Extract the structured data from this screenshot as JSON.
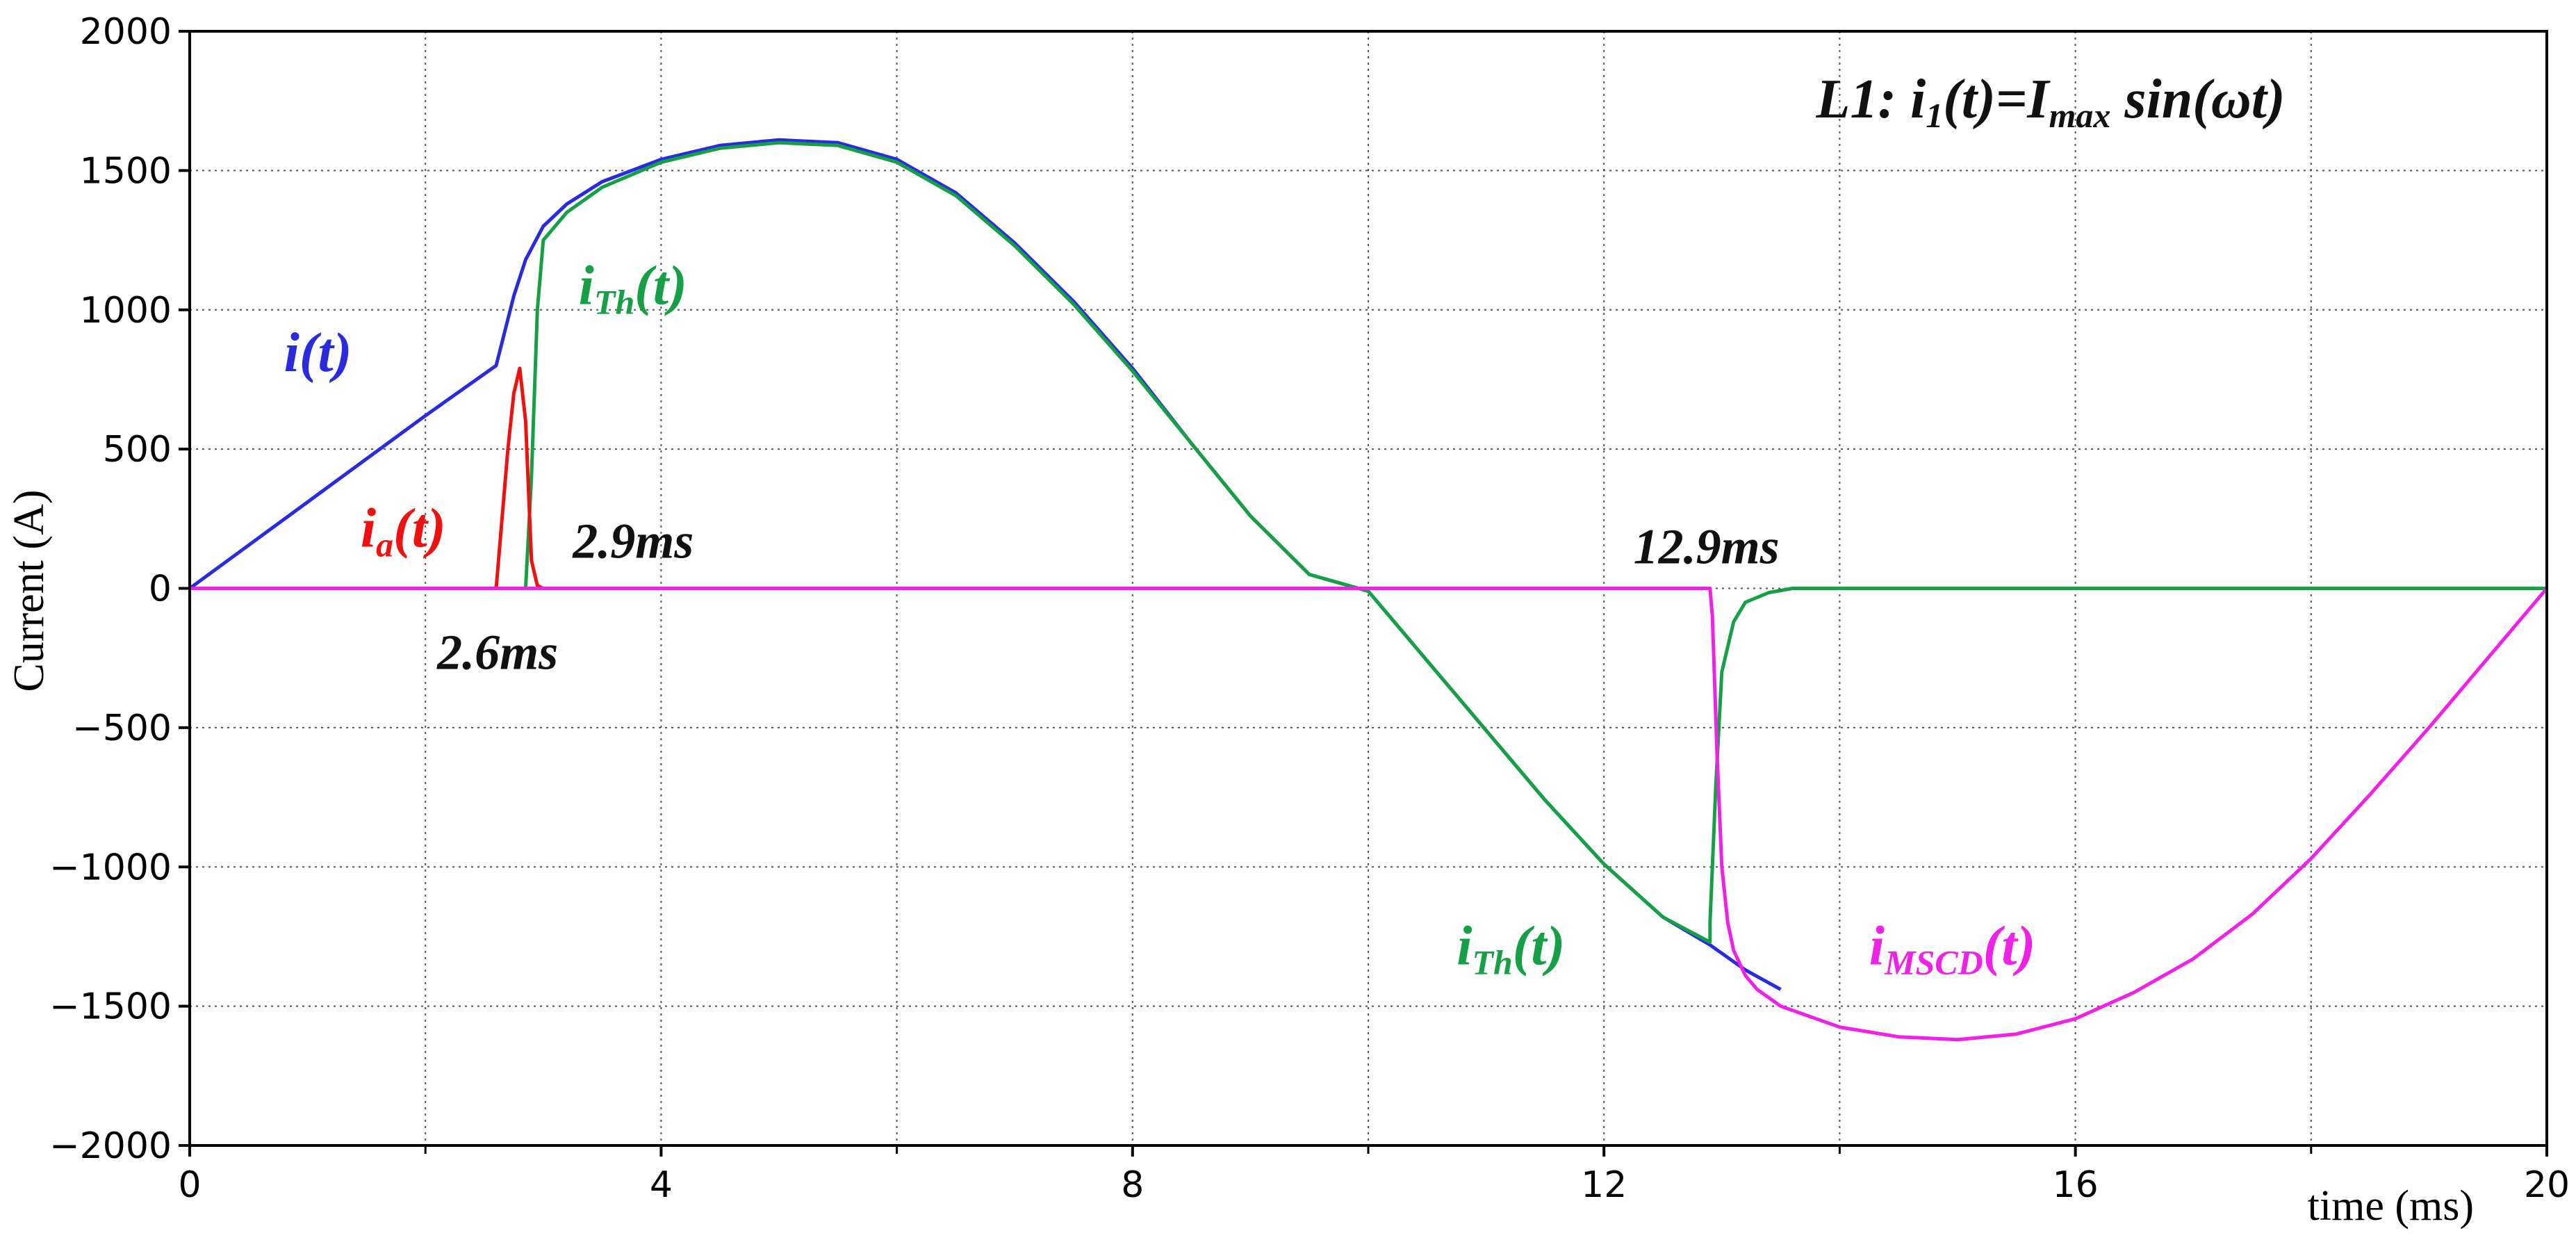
{
  "chart_data": {
    "type": "line",
    "title": "",
    "xlabel": "time (ms)",
    "ylabel": "Current (A)",
    "xlim": [
      0,
      20
    ],
    "ylim": [
      -2000,
      2000
    ],
    "x_ticks": [
      0,
      4,
      8,
      12,
      16,
      20
    ],
    "x_minor_grid": [
      2,
      6,
      10,
      14,
      18
    ],
    "y_ticks": [
      -2000,
      -1500,
      -1000,
      -500,
      0,
      500,
      1000,
      1500,
      2000
    ],
    "grid": true,
    "colors": {
      "i": "#2a2ae0",
      "ia": "#f01010",
      "iTh": "#16a046",
      "iMSCD": "#f020e8",
      "text": "#111111"
    },
    "series": [
      {
        "key": "i",
        "x": [
          0,
          1,
          2,
          2.6,
          2.75,
          2.85,
          3.0,
          3.2,
          3.5,
          4,
          4.5,
          5,
          5.5,
          6,
          6.5,
          7,
          7.5,
          8,
          8.5,
          9,
          9.5,
          10,
          10.5,
          11,
          11.5,
          12,
          12.5,
          12.9,
          13.2,
          13.5
        ],
        "y": [
          0,
          310,
          620,
          800,
          1050,
          1180,
          1300,
          1380,
          1460,
          1540,
          1590,
          1610,
          1600,
          1540,
          1420,
          1240,
          1030,
          790,
          520,
          260,
          50,
          -10,
          -260,
          -510,
          -760,
          -990,
          -1180,
          -1280,
          -1370,
          -1440
        ]
      },
      {
        "key": "ia",
        "x": [
          0,
          2.5,
          2.6,
          2.7,
          2.75,
          2.8,
          2.85,
          2.9,
          2.95,
          3.0,
          6.3
        ],
        "y": [
          0,
          0,
          0,
          500,
          700,
          790,
          600,
          100,
          10,
          0,
          0
        ]
      },
      {
        "key": "iTh",
        "x": [
          0,
          2.85,
          2.9,
          2.95,
          3.0,
          3.2,
          3.5,
          4,
          4.5,
          5,
          5.5,
          6,
          6.5,
          7,
          7.5,
          8,
          8.5,
          9,
          9.5,
          10,
          10.5,
          11,
          11.5,
          12,
          12.5,
          12.9,
          12.9,
          12.95,
          13.0,
          13.1,
          13.2,
          13.4,
          13.6,
          20
        ],
        "y": [
          0,
          0,
          400,
          1000,
          1250,
          1350,
          1440,
          1530,
          1580,
          1600,
          1590,
          1530,
          1410,
          1230,
          1020,
          780,
          520,
          260,
          50,
          -10,
          -260,
          -510,
          -760,
          -990,
          -1180,
          -1270,
          -1200,
          -700,
          -300,
          -120,
          -50,
          -15,
          0,
          0
        ]
      },
      {
        "key": "iMSCD",
        "x": [
          0,
          12.9,
          12.92,
          12.96,
          13.0,
          13.05,
          13.1,
          13.2,
          13.3,
          13.5,
          14,
          14.5,
          15,
          15.5,
          16,
          16.5,
          17,
          17.5,
          18,
          18.5,
          19,
          19.5,
          20
        ],
        "y": [
          0,
          0,
          -100,
          -600,
          -1000,
          -1200,
          -1300,
          -1390,
          -1440,
          -1500,
          -1575,
          -1610,
          -1620,
          -1600,
          -1545,
          -1450,
          -1330,
          -1170,
          -970,
          -740,
          -500,
          -250,
          0
        ]
      }
    ],
    "annotations": [
      {
        "key": "title",
        "color_key": "text",
        "x": 13.8,
        "y": 1690,
        "size": 80,
        "parts": [
          [
            "L1: i",
            0
          ],
          [
            "1",
            -1
          ],
          [
            "(t)=I",
            0
          ],
          [
            "max",
            -1
          ],
          [
            " sin(ωt)",
            0
          ]
        ]
      },
      {
        "key": "label-i",
        "color_key": "i",
        "x": 0.8,
        "y": 780,
        "size": 80,
        "parts": [
          [
            "i(t)",
            0
          ]
        ]
      },
      {
        "key": "label-ia",
        "color_key": "ia",
        "x": 1.45,
        "y": 150,
        "size": 80,
        "parts": [
          [
            "i",
            0
          ],
          [
            "a",
            -1
          ],
          [
            "(t)",
            0
          ]
        ]
      },
      {
        "key": "label-ith-top",
        "color_key": "iTh",
        "x": 3.3,
        "y": 1020,
        "size": 80,
        "parts": [
          [
            "i",
            0
          ],
          [
            "Th",
            -1
          ],
          [
            "(t)",
            0
          ]
        ]
      },
      {
        "key": "label-29ms",
        "color_key": "text",
        "x": 3.25,
        "y": 110,
        "size": 72,
        "parts": [
          [
            "2.9ms",
            0
          ]
        ]
      },
      {
        "key": "label-26ms",
        "color_key": "text",
        "x": 2.1,
        "y": -290,
        "size": 72,
        "parts": [
          [
            "2.6ms",
            0
          ]
        ]
      },
      {
        "key": "label-129ms",
        "color_key": "text",
        "x": 12.25,
        "y": 90,
        "size": 72,
        "parts": [
          [
            "12.9ms",
            0
          ]
        ]
      },
      {
        "key": "label-ith-bottom",
        "color_key": "iTh",
        "x": 10.75,
        "y": -1350,
        "size": 80,
        "parts": [
          [
            "i",
            0
          ],
          [
            "Th",
            -1
          ],
          [
            "(t)",
            0
          ]
        ]
      },
      {
        "key": "label-imscd",
        "color_key": "iMSCD",
        "x": 14.25,
        "y": -1350,
        "size": 80,
        "parts": [
          [
            "i",
            0
          ],
          [
            "MSCD",
            -1
          ],
          [
            "(t)",
            0
          ]
        ]
      }
    ]
  }
}
